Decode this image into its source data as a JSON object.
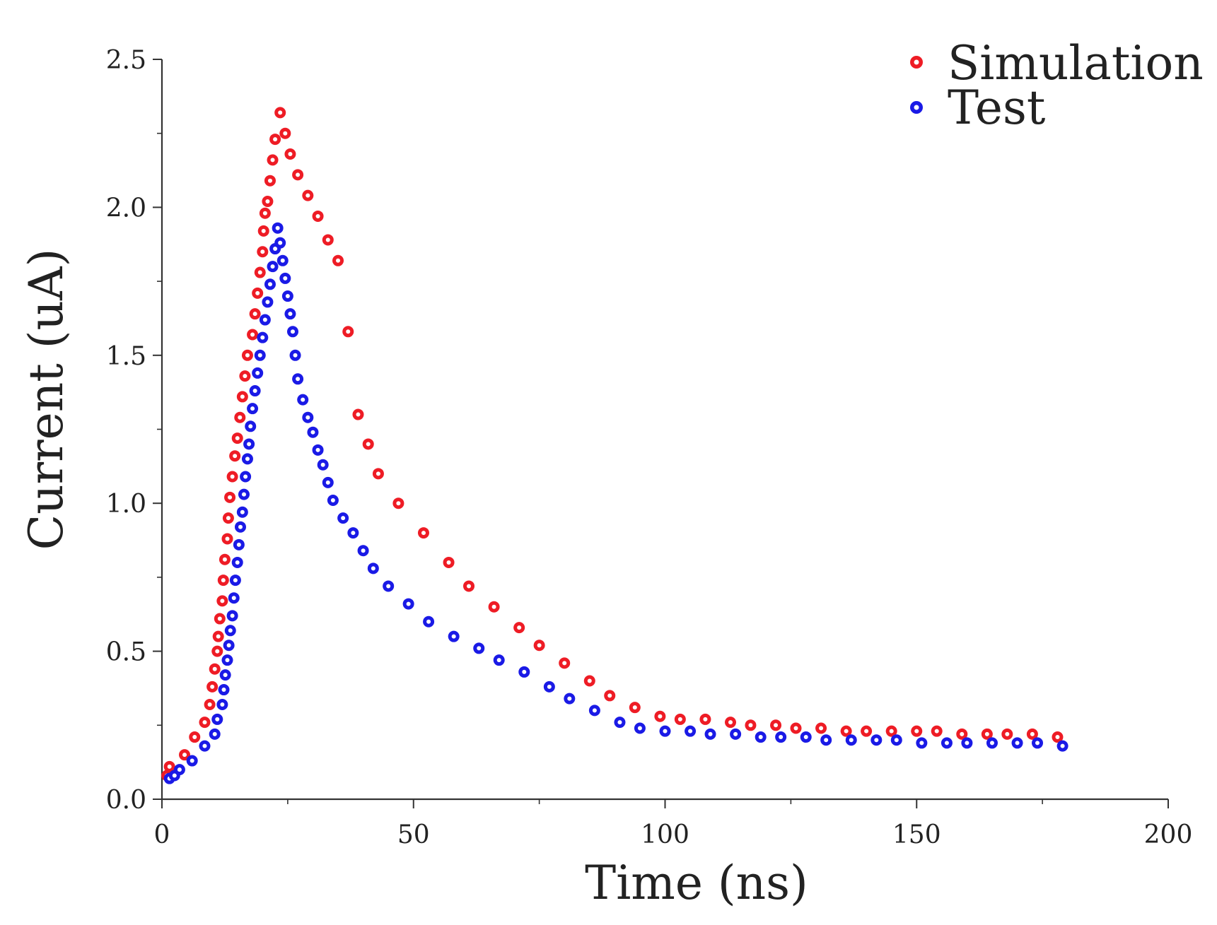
{
  "chart_data": {
    "type": "scatter",
    "title": "",
    "xlabel": "Time (ns)",
    "ylabel": "Current (uA)",
    "xlim": [
      0,
      200
    ],
    "ylim": [
      0,
      2.5
    ],
    "xticks": [
      0,
      50,
      100,
      150,
      200
    ],
    "yticks": [
      0.0,
      0.5,
      1.0,
      1.5,
      2.0,
      2.5
    ],
    "xtick_labels": [
      "0",
      "50",
      "100",
      "150",
      "200"
    ],
    "ytick_labels": [
      "0.0",
      "0.5",
      "1.0",
      "1.5",
      "2.0",
      "2.5"
    ],
    "grid": false,
    "legend_position": "top-right",
    "series": [
      {
        "name": "Simulation",
        "color": "#ee1c25",
        "x": [
          1.0,
          1.5,
          4.5,
          6.5,
          8.5,
          9.5,
          10.0,
          10.5,
          11.0,
          11.2,
          11.5,
          12.0,
          12.2,
          12.5,
          13.0,
          13.2,
          13.5,
          14.0,
          14.5,
          15.0,
          15.5,
          16.0,
          16.5,
          17.0,
          18.0,
          18.5,
          19.0,
          19.5,
          20.0,
          20.2,
          20.5,
          21.0,
          21.5,
          22.0,
          22.5,
          23.5,
          24.5,
          25.5,
          27.0,
          29.0,
          31.0,
          33.0,
          35.0,
          37.0,
          39.0,
          41.0,
          43.0,
          47.0,
          52.0,
          57.0,
          61.0,
          66.0,
          71.0,
          75.0,
          80.0,
          85.0,
          89.0,
          94.0,
          99.0,
          103.0,
          108.0,
          113.0,
          117.0,
          122.0,
          126.0,
          131.0,
          136.0,
          140.0,
          145.0,
          150.0,
          154.0,
          159.0,
          164.0,
          168.0,
          173.0,
          178.0
        ],
        "y": [
          0.08,
          0.11,
          0.15,
          0.21,
          0.26,
          0.32,
          0.38,
          0.44,
          0.5,
          0.55,
          0.61,
          0.67,
          0.74,
          0.81,
          0.88,
          0.95,
          1.02,
          1.09,
          1.16,
          1.22,
          1.29,
          1.36,
          1.43,
          1.5,
          1.57,
          1.64,
          1.71,
          1.78,
          1.85,
          1.92,
          1.98,
          2.02,
          2.09,
          2.16,
          2.23,
          2.32,
          2.25,
          2.18,
          2.11,
          2.04,
          1.97,
          1.89,
          1.82,
          1.58,
          1.3,
          1.2,
          1.1,
          1.0,
          0.9,
          0.8,
          0.72,
          0.65,
          0.58,
          0.52,
          0.46,
          0.4,
          0.35,
          0.31,
          0.28,
          0.27,
          0.27,
          0.26,
          0.25,
          0.25,
          0.24,
          0.24,
          0.23,
          0.23,
          0.23,
          0.23,
          0.23,
          0.22,
          0.22,
          0.22,
          0.22,
          0.21
        ]
      },
      {
        "name": "Test",
        "color": "#1a1ae6",
        "x": [
          1.5,
          2.5,
          3.5,
          6.0,
          8.5,
          10.5,
          11.0,
          12.0,
          12.3,
          12.6,
          13.0,
          13.3,
          13.6,
          14.0,
          14.3,
          14.6,
          15.0,
          15.3,
          15.6,
          16.0,
          16.3,
          16.6,
          17.0,
          17.3,
          17.6,
          18.0,
          18.5,
          19.0,
          19.5,
          20.0,
          20.5,
          21.0,
          21.5,
          22.0,
          22.5,
          23.0,
          23.5,
          24.0,
          24.5,
          25.0,
          25.5,
          26.0,
          26.5,
          27.0,
          28.0,
          29.0,
          30.0,
          31.0,
          32.0,
          33.0,
          34.0,
          36.0,
          38.0,
          40.0,
          42.0,
          45.0,
          49.0,
          53.0,
          58.0,
          63.0,
          67.0,
          72.0,
          77.0,
          81.0,
          86.0,
          91.0,
          95.0,
          100.0,
          105.0,
          109.0,
          114.0,
          119.0,
          123.0,
          128.0,
          132.0,
          137.0,
          142.0,
          146.0,
          151.0,
          156.0,
          160.0,
          165.0,
          170.0,
          174.0,
          179.0
        ],
        "y": [
          0.07,
          0.08,
          0.1,
          0.13,
          0.18,
          0.22,
          0.27,
          0.32,
          0.37,
          0.42,
          0.47,
          0.52,
          0.57,
          0.62,
          0.68,
          0.74,
          0.8,
          0.86,
          0.92,
          0.97,
          1.03,
          1.09,
          1.15,
          1.2,
          1.26,
          1.32,
          1.38,
          1.44,
          1.5,
          1.56,
          1.62,
          1.68,
          1.74,
          1.8,
          1.86,
          1.93,
          1.88,
          1.82,
          1.76,
          1.7,
          1.64,
          1.58,
          1.5,
          1.42,
          1.35,
          1.29,
          1.24,
          1.18,
          1.13,
          1.07,
          1.01,
          0.95,
          0.9,
          0.84,
          0.78,
          0.72,
          0.66,
          0.6,
          0.55,
          0.51,
          0.47,
          0.43,
          0.38,
          0.34,
          0.3,
          0.26,
          0.24,
          0.23,
          0.23,
          0.22,
          0.22,
          0.21,
          0.21,
          0.21,
          0.2,
          0.2,
          0.2,
          0.2,
          0.19,
          0.19,
          0.19,
          0.19,
          0.19,
          0.19,
          0.18
        ]
      }
    ]
  }
}
